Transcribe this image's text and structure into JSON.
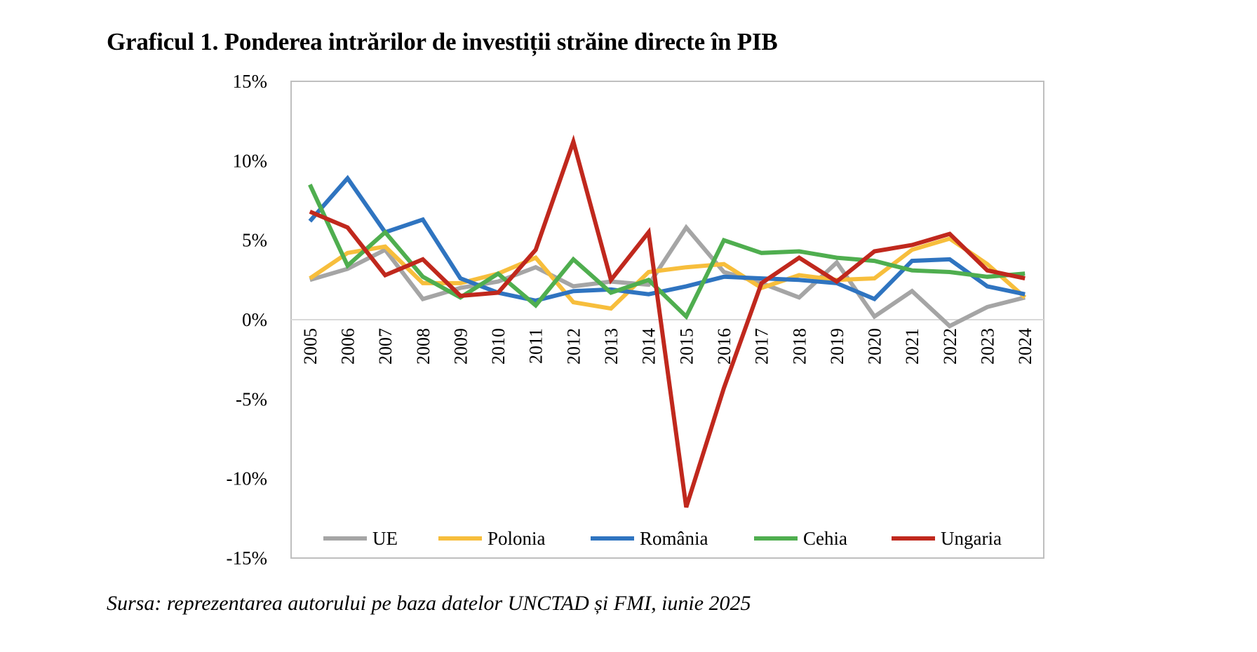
{
  "title": "Graficul 1. Ponderea intrărilor de investiții străine directe în PIB",
  "source": "Sursa: reprezentarea autorului pe baza datelor UNCTAD și FMI, iunie 2025",
  "chart_data": {
    "type": "line",
    "title": "Graficul 1. Ponderea intrărilor de investiții străine directe în PIB",
    "xlabel": "",
    "ylabel": "",
    "ylim": [
      -15,
      15
    ],
    "yticks": [
      15,
      10,
      5,
      0,
      -5,
      -10,
      -15
    ],
    "ytick_labels": [
      "15%",
      "10%",
      "5%",
      "0%",
      "-5%",
      "-10%",
      "-15%"
    ],
    "grid": false,
    "legend_position": "bottom",
    "categories": [
      "2005",
      "2006",
      "2007",
      "2008",
      "2009",
      "2010",
      "2011",
      "2012",
      "2013",
      "2014",
      "2015",
      "2016",
      "2017",
      "2018",
      "2019",
      "2020",
      "2021",
      "2022",
      "2023",
      "2024"
    ],
    "series": [
      {
        "name": "UE",
        "color": "#a5a5a5",
        "values": [
          2.5,
          3.2,
          4.4,
          1.3,
          2.0,
          2.4,
          3.3,
          2.1,
          2.4,
          2.2,
          5.8,
          3.0,
          2.3,
          1.4,
          3.6,
          0.2,
          1.8,
          -0.4,
          0.8,
          1.4
        ]
      },
      {
        "name": "Polonia",
        "color": "#f7be3c",
        "values": [
          2.6,
          4.2,
          4.6,
          2.3,
          2.3,
          2.9,
          3.9,
          1.1,
          0.7,
          3.0,
          3.3,
          3.5,
          2.0,
          2.8,
          2.5,
          2.6,
          4.4,
          5.1,
          3.5,
          1.4
        ]
      },
      {
        "name": "România",
        "color": "#2f74c0",
        "values": [
          6.2,
          8.9,
          5.5,
          6.3,
          2.6,
          1.7,
          1.2,
          1.8,
          1.9,
          1.6,
          2.1,
          2.7,
          2.6,
          2.5,
          2.3,
          1.3,
          3.7,
          3.8,
          2.1,
          1.6
        ]
      },
      {
        "name": "Cehia",
        "color": "#4fae4f",
        "values": [
          8.5,
          3.4,
          5.5,
          2.7,
          1.4,
          2.9,
          0.9,
          3.8,
          1.7,
          2.5,
          0.2,
          5.0,
          4.2,
          4.3,
          3.9,
          3.7,
          3.1,
          3.0,
          2.7,
          2.9
        ]
      },
      {
        "name": "Ungaria",
        "color": "#c0281d",
        "values": [
          6.8,
          5.8,
          2.8,
          3.8,
          1.5,
          1.7,
          4.4,
          11.2,
          2.5,
          5.5,
          -11.8,
          -4.3,
          2.3,
          3.9,
          2.4,
          4.3,
          4.7,
          5.4,
          3.1,
          2.6
        ]
      }
    ]
  }
}
